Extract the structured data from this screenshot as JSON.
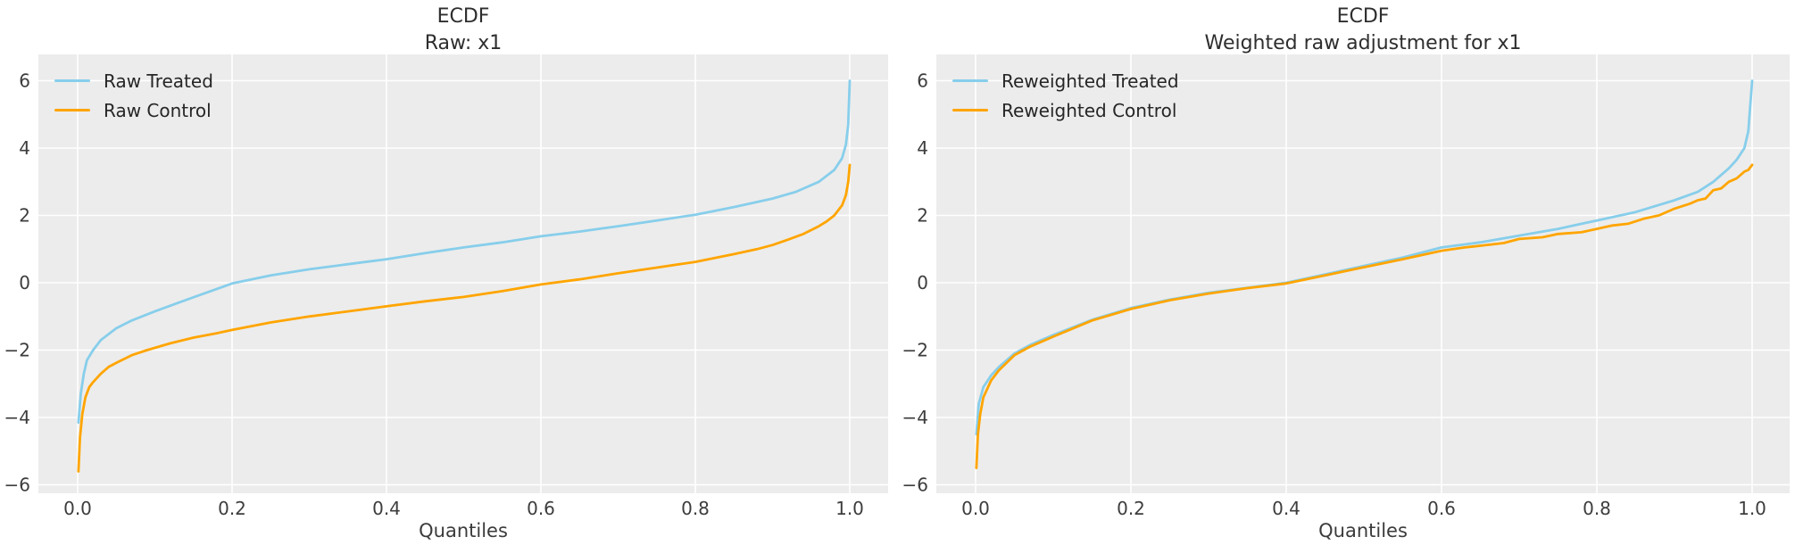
{
  "figure": {
    "background": "#ffffff",
    "panel_background": "#ececec",
    "grid_color": "#ffffff",
    "tick_color": "#3d3d3d",
    "title_color": "#2e2e2e",
    "treated_color": "#87CEEB",
    "control_color": "#FFA500"
  },
  "chart_data": [
    {
      "type": "line",
      "title": "ECDF",
      "subtitle": "Raw: x1",
      "xlabel": "Quantiles",
      "ylabel": "",
      "xlim": [
        -0.05,
        1.05
      ],
      "ylim": [
        -6.3,
        6.7
      ],
      "grid": true,
      "legend_position": "upper left",
      "xticks": [
        {
          "label": "0.0",
          "v": 0.0
        },
        {
          "label": "0.2",
          "v": 0.2
        },
        {
          "label": "0.4",
          "v": 0.4
        },
        {
          "label": "0.6",
          "v": 0.6
        },
        {
          "label": "0.8",
          "v": 0.8
        },
        {
          "label": "1.0",
          "v": 1.0
        }
      ],
      "yticks": [
        {
          "label": "6",
          "v": 6
        },
        {
          "label": "4",
          "v": 4
        },
        {
          "label": "2",
          "v": 2
        },
        {
          "label": "0",
          "v": 0
        },
        {
          "label": "−2",
          "v": -2
        },
        {
          "label": "−4",
          "v": -4
        },
        {
          "label": "−6",
          "v": -6
        }
      ],
      "series": [
        {
          "name": "Raw Treated",
          "color": "#87CEEB",
          "points": [
            [
              0.001,
              -4.15
            ],
            [
              0.004,
              -3.3
            ],
            [
              0.008,
              -2.7
            ],
            [
              0.012,
              -2.3
            ],
            [
              0.02,
              -2.0
            ],
            [
              0.03,
              -1.7
            ],
            [
              0.05,
              -1.35
            ],
            [
              0.07,
              -1.12
            ],
            [
              0.1,
              -0.85
            ],
            [
              0.13,
              -0.6
            ],
            [
              0.16,
              -0.35
            ],
            [
              0.2,
              -0.02
            ],
            [
              0.25,
              0.22
            ],
            [
              0.3,
              0.4
            ],
            [
              0.35,
              0.55
            ],
            [
              0.4,
              0.7
            ],
            [
              0.45,
              0.88
            ],
            [
              0.5,
              1.05
            ],
            [
              0.55,
              1.2
            ],
            [
              0.6,
              1.38
            ],
            [
              0.65,
              1.52
            ],
            [
              0.7,
              1.68
            ],
            [
              0.75,
              1.85
            ],
            [
              0.8,
              2.02
            ],
            [
              0.85,
              2.25
            ],
            [
              0.9,
              2.5
            ],
            [
              0.93,
              2.7
            ],
            [
              0.96,
              3.0
            ],
            [
              0.98,
              3.35
            ],
            [
              0.99,
              3.7
            ],
            [
              0.995,
              4.1
            ],
            [
              0.998,
              4.7
            ],
            [
              1.0,
              6.0
            ]
          ]
        },
        {
          "name": "Raw Control",
          "color": "#FFA500",
          "points": [
            [
              0.001,
              -5.6
            ],
            [
              0.003,
              -4.6
            ],
            [
              0.006,
              -3.9
            ],
            [
              0.01,
              -3.4
            ],
            [
              0.015,
              -3.1
            ],
            [
              0.02,
              -2.95
            ],
            [
              0.03,
              -2.7
            ],
            [
              0.04,
              -2.5
            ],
            [
              0.05,
              -2.38
            ],
            [
              0.07,
              -2.15
            ],
            [
              0.09,
              -2.0
            ],
            [
              0.12,
              -1.8
            ],
            [
              0.15,
              -1.63
            ],
            [
              0.18,
              -1.5
            ],
            [
              0.2,
              -1.4
            ],
            [
              0.25,
              -1.18
            ],
            [
              0.3,
              -1.0
            ],
            [
              0.35,
              -0.85
            ],
            [
              0.4,
              -0.7
            ],
            [
              0.45,
              -0.55
            ],
            [
              0.5,
              -0.42
            ],
            [
              0.55,
              -0.25
            ],
            [
              0.6,
              -0.05
            ],
            [
              0.65,
              0.1
            ],
            [
              0.7,
              0.28
            ],
            [
              0.75,
              0.45
            ],
            [
              0.8,
              0.62
            ],
            [
              0.85,
              0.85
            ],
            [
              0.88,
              1.0
            ],
            [
              0.9,
              1.12
            ],
            [
              0.92,
              1.28
            ],
            [
              0.94,
              1.45
            ],
            [
              0.96,
              1.68
            ],
            [
              0.97,
              1.82
            ],
            [
              0.98,
              2.0
            ],
            [
              0.99,
              2.3
            ],
            [
              0.995,
              2.6
            ],
            [
              0.998,
              3.0
            ],
            [
              1.0,
              3.5
            ]
          ]
        }
      ]
    },
    {
      "type": "line",
      "title": "ECDF",
      "subtitle": "Weighted raw adjustment for x1",
      "xlabel": "Quantiles",
      "ylabel": "",
      "xlim": [
        -0.05,
        1.05
      ],
      "ylim": [
        -6.3,
        6.7
      ],
      "grid": true,
      "legend_position": "upper left",
      "xticks": [
        {
          "label": "0.0",
          "v": 0.0
        },
        {
          "label": "0.2",
          "v": 0.2
        },
        {
          "label": "0.4",
          "v": 0.4
        },
        {
          "label": "0.6",
          "v": 0.6
        },
        {
          "label": "0.8",
          "v": 0.8
        },
        {
          "label": "1.0",
          "v": 1.0
        }
      ],
      "yticks": [
        {
          "label": "6",
          "v": 6
        },
        {
          "label": "4",
          "v": 4
        },
        {
          "label": "2",
          "v": 2
        },
        {
          "label": "0",
          "v": 0
        },
        {
          "label": "−2",
          "v": -2
        },
        {
          "label": "−4",
          "v": -4
        },
        {
          "label": "−6",
          "v": -6
        }
      ],
      "series": [
        {
          "name": "Reweighted Treated",
          "color": "#87CEEB",
          "points": [
            [
              0.001,
              -4.5
            ],
            [
              0.004,
              -3.6
            ],
            [
              0.01,
              -3.1
            ],
            [
              0.02,
              -2.75
            ],
            [
              0.03,
              -2.5
            ],
            [
              0.05,
              -2.1
            ],
            [
              0.07,
              -1.85
            ],
            [
              0.1,
              -1.55
            ],
            [
              0.15,
              -1.1
            ],
            [
              0.2,
              -0.75
            ],
            [
              0.25,
              -0.5
            ],
            [
              0.3,
              -0.3
            ],
            [
              0.35,
              -0.15
            ],
            [
              0.4,
              0.0
            ],
            [
              0.45,
              0.25
            ],
            [
              0.5,
              0.5
            ],
            [
              0.55,
              0.75
            ],
            [
              0.6,
              1.05
            ],
            [
              0.65,
              1.2
            ],
            [
              0.7,
              1.4
            ],
            [
              0.75,
              1.6
            ],
            [
              0.8,
              1.85
            ],
            [
              0.85,
              2.1
            ],
            [
              0.9,
              2.45
            ],
            [
              0.93,
              2.7
            ],
            [
              0.95,
              3.0
            ],
            [
              0.97,
              3.4
            ],
            [
              0.98,
              3.65
            ],
            [
              0.99,
              4.0
            ],
            [
              0.995,
              4.5
            ],
            [
              1.0,
              6.0
            ]
          ]
        },
        {
          "name": "Reweighted Control",
          "color": "#FFA500",
          "points": [
            [
              0.001,
              -5.5
            ],
            [
              0.003,
              -4.5
            ],
            [
              0.006,
              -3.9
            ],
            [
              0.01,
              -3.4
            ],
            [
              0.02,
              -2.9
            ],
            [
              0.03,
              -2.6
            ],
            [
              0.05,
              -2.15
            ],
            [
              0.07,
              -1.9
            ],
            [
              0.1,
              -1.6
            ],
            [
              0.15,
              -1.12
            ],
            [
              0.2,
              -0.78
            ],
            [
              0.25,
              -0.52
            ],
            [
              0.3,
              -0.32
            ],
            [
              0.35,
              -0.16
            ],
            [
              0.4,
              -0.02
            ],
            [
              0.45,
              0.22
            ],
            [
              0.5,
              0.46
            ],
            [
              0.55,
              0.7
            ],
            [
              0.6,
              0.95
            ],
            [
              0.63,
              1.05
            ],
            [
              0.65,
              1.1
            ],
            [
              0.68,
              1.18
            ],
            [
              0.7,
              1.3
            ],
            [
              0.73,
              1.35
            ],
            [
              0.75,
              1.45
            ],
            [
              0.78,
              1.5
            ],
            [
              0.8,
              1.6
            ],
            [
              0.82,
              1.7
            ],
            [
              0.84,
              1.75
            ],
            [
              0.86,
              1.9
            ],
            [
              0.88,
              2.0
            ],
            [
              0.9,
              2.2
            ],
            [
              0.92,
              2.35
            ],
            [
              0.93,
              2.45
            ],
            [
              0.94,
              2.5
            ],
            [
              0.95,
              2.75
            ],
            [
              0.96,
              2.8
            ],
            [
              0.97,
              3.0
            ],
            [
              0.98,
              3.1
            ],
            [
              0.99,
              3.3
            ],
            [
              0.995,
              3.35
            ],
            [
              1.0,
              3.5
            ]
          ]
        }
      ]
    }
  ]
}
